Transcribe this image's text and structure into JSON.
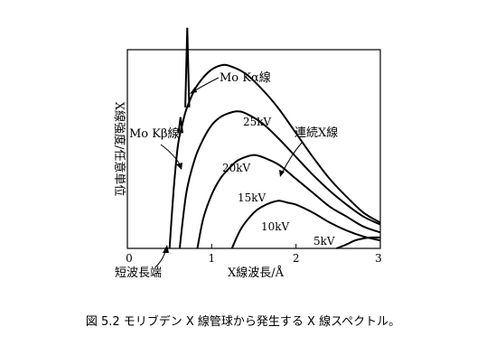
{
  "chart_data": {
    "type": "line",
    "xlabel": "X線波長/Å",
    "ylabel": "X線強度/任意単位",
    "xlim": [
      0,
      3
    ],
    "ylim": [
      0,
      100
    ],
    "x_ticks": [
      "0",
      "1",
      "2",
      "3"
    ],
    "grid": false,
    "legend": "none",
    "series": [
      {
        "name": "25kV",
        "x": [
          0.5,
          0.55,
          0.6,
          0.65,
          0.7,
          0.8,
          0.9,
          1.0,
          1.1,
          1.2,
          1.4,
          1.6,
          1.8,
          2.0,
          2.2,
          2.4,
          2.6,
          2.8,
          3.0
        ],
        "y": [
          0,
          30,
          52,
          62,
          70,
          80,
          86,
          90,
          92,
          92,
          88,
          80,
          70,
          58,
          46,
          35,
          26,
          18,
          13
        ]
      },
      {
        "name": "20kV",
        "x": [
          0.62,
          0.7,
          0.8,
          0.9,
          1.0,
          1.1,
          1.2,
          1.3,
          1.4,
          1.6,
          1.8,
          2.0,
          2.2,
          2.4,
          2.6,
          2.8,
          3.0
        ],
        "y": [
          0,
          28,
          45,
          55,
          62,
          66,
          68,
          69,
          68,
          63,
          55,
          46,
          37,
          29,
          22,
          16,
          12
        ]
      },
      {
        "name": "15kV",
        "x": [
          0.83,
          0.9,
          1.0,
          1.1,
          1.2,
          1.3,
          1.4,
          1.5,
          1.6,
          1.8,
          2.0,
          2.2,
          2.4,
          2.6,
          2.8,
          3.0
        ],
        "y": [
          0,
          15,
          27,
          35,
          40,
          44,
          46,
          47,
          46,
          42,
          35,
          28,
          21,
          16,
          11,
          8
        ]
      },
      {
        "name": "10kV",
        "x": [
          1.24,
          1.35,
          1.5,
          1.6,
          1.7,
          1.8,
          1.9,
          2.0,
          2.2,
          2.4,
          2.6,
          2.8,
          3.0
        ],
        "y": [
          0,
          10,
          18,
          21,
          23,
          24,
          23,
          22,
          18,
          13,
          9,
          6,
          4
        ]
      },
      {
        "name": "5kV",
        "x": [
          2.48,
          2.6,
          2.7,
          2.8,
          2.9,
          3.0
        ],
        "y": [
          0,
          2,
          4,
          5,
          5.5,
          5.5
        ]
      }
    ],
    "peaks": [
      {
        "label": "Mo Kβ線",
        "x": 0.63,
        "height": 8
      },
      {
        "label": "Mo Kα線",
        "x": 0.71,
        "height": 40
      }
    ],
    "annotations": [
      "Mo Kα線",
      "Mo Kβ線",
      "連続X線",
      "短波長端"
    ]
  },
  "caption": "図 5.2 モリブデン X 線管球から発生する X 線スペクトル。"
}
